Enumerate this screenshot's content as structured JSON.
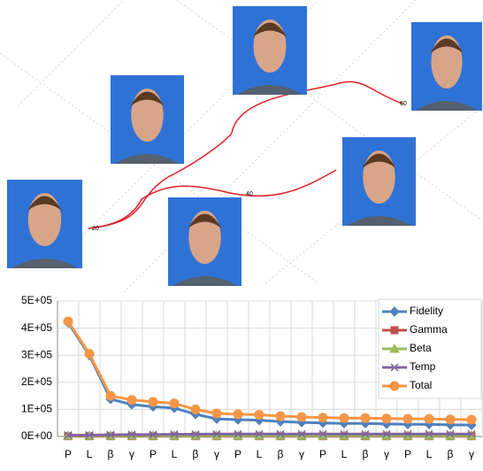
{
  "trajectory_labels": [
    "20",
    "40",
    "60"
  ],
  "chart_data": {
    "type": "line",
    "categories": [
      "P",
      "L",
      "β",
      "γ",
      "P",
      "L",
      "β",
      "γ",
      "P",
      "L",
      "β",
      "γ",
      "P",
      "L",
      "β",
      "γ",
      "P",
      "L",
      "β",
      "γ"
    ],
    "series": [
      {
        "name": "Fidelity",
        "color": "#4f81bd",
        "marker": "diamond",
        "values": [
          420000,
          300000,
          138000,
          118000,
          110000,
          105000,
          82000,
          65000,
          62000,
          60000,
          55000,
          52000,
          50000,
          48000,
          48000,
          46000,
          45000,
          45000,
          43000,
          42000
        ]
      },
      {
        "name": "Gamma",
        "color": "#c0504d",
        "marker": "square",
        "values": [
          1000,
          1000,
          1000,
          1000,
          1000,
          1000,
          1000,
          1000,
          1000,
          1000,
          1000,
          1000,
          1000,
          1000,
          1000,
          1000,
          1000,
          1000,
          1000,
          1000
        ]
      },
      {
        "name": "Beta",
        "color": "#9bbb59",
        "marker": "triangle",
        "values": [
          3000,
          3000,
          3000,
          3000,
          3000,
          3000,
          3000,
          3000,
          3000,
          3000,
          3000,
          3000,
          3000,
          3000,
          3000,
          3000,
          3000,
          3000,
          3000,
          3000
        ]
      },
      {
        "name": "Temp",
        "color": "#8064a2",
        "marker": "x",
        "values": [
          5000,
          5000,
          6000,
          7000,
          7000,
          8000,
          8000,
          9000,
          9000,
          9000,
          9000,
          9000,
          9000,
          9000,
          9000,
          9000,
          9000,
          9000,
          9000,
          9000
        ]
      },
      {
        "name": "Total",
        "color": "#f79646",
        "marker": "circle",
        "values": [
          425000,
          305000,
          150000,
          135000,
          128000,
          122000,
          100000,
          85000,
          82000,
          80000,
          75000,
          72000,
          70000,
          68000,
          68000,
          66000,
          65000,
          65000,
          63000,
          62000
        ]
      }
    ],
    "ylim": [
      0,
      500000
    ],
    "yticks": [
      {
        "value": 0,
        "label": "0E+00"
      },
      {
        "value": 100000,
        "label": "1E+05"
      },
      {
        "value": 200000,
        "label": "2E+05"
      },
      {
        "value": 300000,
        "label": "3E+05"
      },
      {
        "value": 400000,
        "label": "4E+05"
      },
      {
        "value": 500000,
        "label": "5E+05"
      }
    ],
    "grid": true,
    "legend": "upper right"
  }
}
